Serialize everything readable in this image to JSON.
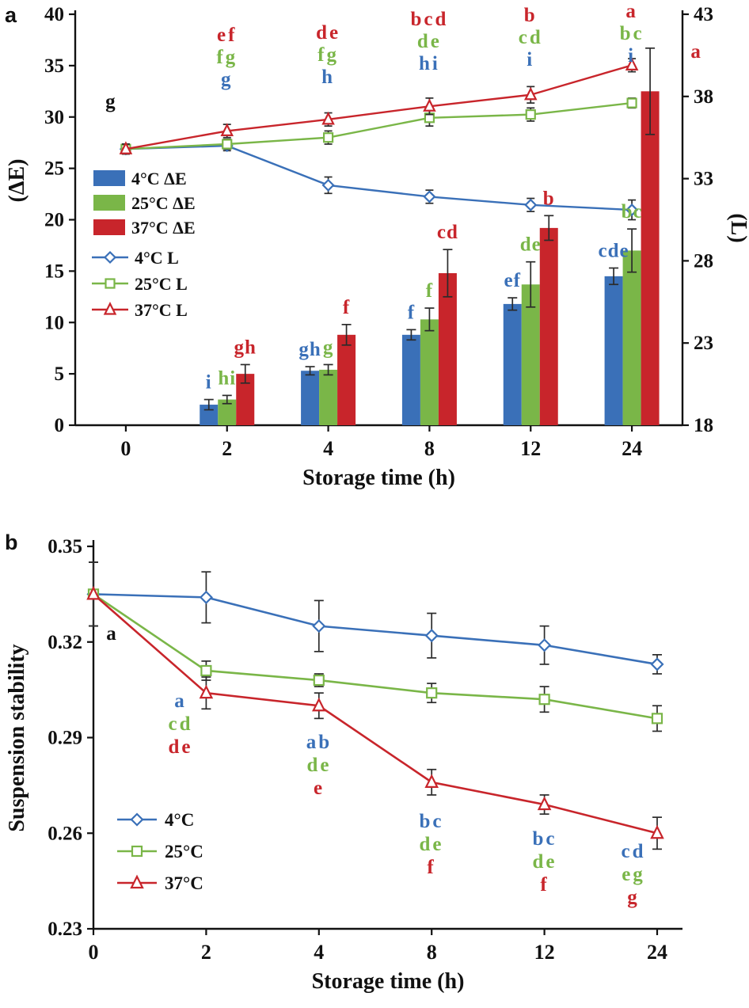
{
  "panels": {
    "a": {
      "label": "a"
    },
    "b": {
      "label": "b"
    }
  },
  "colors": {
    "blue": "#3a70b8",
    "green": "#7ab648",
    "red": "#c8252b",
    "black": "#111111"
  },
  "chart_data": [
    {
      "id": "panel-a",
      "type": "bar",
      "subtype": "grouped bars with dual-axis lines",
      "categories": [
        "0",
        "2",
        "4",
        "8",
        "12",
        "24"
      ],
      "xlabel": "Storage time (h)",
      "left_axis": {
        "label": "(ΔE)",
        "min": 0,
        "max": 40,
        "ticks": [
          0,
          5,
          10,
          15,
          20,
          25,
          30,
          35,
          40
        ]
      },
      "right_axis": {
        "label": "(L)",
        "min": 18,
        "max": 43,
        "ticks": [
          18,
          23,
          28,
          33,
          38,
          43
        ]
      },
      "bar_series": [
        {
          "name": "4°C ΔE",
          "color": "blue",
          "values": [
            null,
            2.0,
            5.3,
            8.8,
            11.8,
            14.5
          ],
          "errors": [
            null,
            0.5,
            0.4,
            0.5,
            0.6,
            0.8
          ]
        },
        {
          "name": "25°C ΔE",
          "color": "green",
          "values": [
            null,
            2.5,
            5.4,
            10.3,
            13.7,
            17.0
          ],
          "errors": [
            null,
            0.4,
            0.5,
            1.1,
            2.2,
            2.1
          ]
        },
        {
          "name": "37°C ΔE",
          "color": "red",
          "values": [
            null,
            5.0,
            8.8,
            14.8,
            19.2,
            32.5
          ],
          "errors": [
            null,
            0.9,
            1.0,
            2.3,
            1.2,
            4.2
          ]
        }
      ],
      "line_series": [
        {
          "name": "4°C L",
          "color": "blue",
          "marker": "diamond",
          "values": [
            34.8,
            35.0,
            32.6,
            31.9,
            31.4,
            31.1
          ],
          "errors": [
            0.3,
            0.3,
            0.5,
            0.4,
            0.4,
            0.6
          ]
        },
        {
          "name": "25°C L",
          "color": "green",
          "marker": "square",
          "values": [
            34.8,
            35.1,
            35.5,
            36.7,
            36.9,
            37.6
          ],
          "errors": [
            0.3,
            0.3,
            0.4,
            0.5,
            0.4,
            0.3
          ]
        },
        {
          "name": "37°C L",
          "color": "red",
          "marker": "triangle",
          "values": [
            34.8,
            35.9,
            36.6,
            37.4,
            38.1,
            39.9
          ],
          "errors": [
            0.3,
            0.4,
            0.4,
            0.5,
            0.5,
            0.4
          ]
        }
      ],
      "sig_letters_lines": [
        {
          "cat": 0,
          "items": [
            {
              "t": "g",
              "c": "black"
            }
          ]
        },
        {
          "cat": 1,
          "items": [
            {
              "t": "ef",
              "c": "red"
            },
            {
              "t": "fg",
              "c": "green"
            },
            {
              "t": "g",
              "c": "blue"
            }
          ]
        },
        {
          "cat": 2,
          "items": [
            {
              "t": "de",
              "c": "red"
            },
            {
              "t": "fg",
              "c": "green"
            },
            {
              "t": "h",
              "c": "blue"
            }
          ]
        },
        {
          "cat": 3,
          "items": [
            {
              "t": "bcd",
              "c": "red"
            },
            {
              "t": "de",
              "c": "green"
            },
            {
              "t": "hi",
              "c": "blue"
            }
          ]
        },
        {
          "cat": 4,
          "items": [
            {
              "t": "b",
              "c": "red"
            },
            {
              "t": "cd",
              "c": "green"
            },
            {
              "t": "i",
              "c": "blue"
            }
          ]
        },
        {
          "cat": 5,
          "items": [
            {
              "t": "a",
              "c": "red"
            },
            {
              "t": "bc",
              "c": "green"
            },
            {
              "t": "i",
              "c": "blue"
            }
          ]
        }
      ],
      "sig_letters_bars": [
        {
          "cat": 1,
          "series": 0,
          "t": "i",
          "c": "blue"
        },
        {
          "cat": 1,
          "series": 1,
          "t": "hi",
          "c": "green"
        },
        {
          "cat": 1,
          "series": 2,
          "t": "gh",
          "c": "red"
        },
        {
          "cat": 2,
          "series": 0,
          "t": "gh",
          "c": "blue"
        },
        {
          "cat": 2,
          "series": 1,
          "t": "g",
          "c": "green"
        },
        {
          "cat": 2,
          "series": 2,
          "t": "f",
          "c": "red"
        },
        {
          "cat": 3,
          "series": 0,
          "t": "f",
          "c": "blue"
        },
        {
          "cat": 3,
          "series": 1,
          "t": "f",
          "c": "green"
        },
        {
          "cat": 3,
          "series": 2,
          "t": "cd",
          "c": "red"
        },
        {
          "cat": 4,
          "series": 0,
          "t": "ef",
          "c": "blue"
        },
        {
          "cat": 4,
          "series": 1,
          "t": "de",
          "c": "green"
        },
        {
          "cat": 4,
          "series": 2,
          "t": "b",
          "c": "red"
        },
        {
          "cat": 5,
          "series": 0,
          "t": "cde",
          "c": "blue"
        },
        {
          "cat": 5,
          "series": 1,
          "t": "bc",
          "c": "green"
        },
        {
          "cat": 5,
          "series": 2,
          "t": "a",
          "c": "red",
          "dx": 58,
          "dy": 26
        }
      ]
    },
    {
      "id": "panel-b",
      "type": "line",
      "categories": [
        "0",
        "2",
        "4",
        "8",
        "12",
        "24"
      ],
      "xlabel": "Storage time (h)",
      "ylabel": "Suspension stability",
      "y_axis": {
        "min": 0.23,
        "max": 0.35,
        "ticks": [
          0.23,
          0.26,
          0.29,
          0.32,
          0.35
        ]
      },
      "series": [
        {
          "name": "4°C",
          "color": "blue",
          "marker": "diamond",
          "values": [
            0.335,
            0.334,
            0.325,
            0.322,
            0.319,
            0.313
          ],
          "errors": [
            0.01,
            0.008,
            0.008,
            0.007,
            0.006,
            0.003
          ]
        },
        {
          "name": "25°C",
          "color": "green",
          "marker": "square",
          "values": [
            0.335,
            0.311,
            0.308,
            0.304,
            0.302,
            0.296
          ],
          "errors": [
            0.01,
            0.003,
            0.002,
            0.003,
            0.004,
            0.004
          ]
        },
        {
          "name": "37°C",
          "color": "red",
          "marker": "triangle",
          "values": [
            0.335,
            0.304,
            0.3,
            0.276,
            0.269,
            0.26
          ],
          "errors": [
            0.01,
            0.005,
            0.004,
            0.004,
            0.003,
            0.005
          ]
        }
      ],
      "sig_letters": [
        {
          "cat": 0,
          "items": [
            {
              "t": "a",
              "c": "black"
            }
          ]
        },
        {
          "cat": 1,
          "items": [
            {
              "t": "a",
              "c": "blue"
            },
            {
              "t": "cd",
              "c": "green"
            },
            {
              "t": "de",
              "c": "red"
            }
          ]
        },
        {
          "cat": 2,
          "items": [
            {
              "t": "ab",
              "c": "blue"
            },
            {
              "t": "de",
              "c": "green"
            },
            {
              "t": "e",
              "c": "red"
            }
          ]
        },
        {
          "cat": 3,
          "items": [
            {
              "t": "bc",
              "c": "blue"
            },
            {
              "t": "de",
              "c": "green"
            },
            {
              "t": "f",
              "c": "red"
            }
          ]
        },
        {
          "cat": 4,
          "items": [
            {
              "t": "bc",
              "c": "blue"
            },
            {
              "t": "de",
              "c": "green"
            },
            {
              "t": "f",
              "c": "red"
            }
          ]
        },
        {
          "cat": 5,
          "items": [
            {
              "t": "cd",
              "c": "blue"
            },
            {
              "t": "eg",
              "c": "green"
            },
            {
              "t": "g",
              "c": "red"
            }
          ]
        }
      ]
    }
  ]
}
